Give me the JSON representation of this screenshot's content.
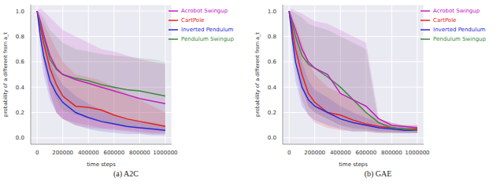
{
  "chart_data": [
    {
      "type": "line",
      "title": "(a) A2C",
      "x_label": "time steps",
      "y_label": "probability of a different from a_t",
      "x": [
        0,
        25000,
        50000,
        100000,
        150000,
        200000,
        300000,
        400000,
        500000,
        600000,
        700000,
        800000,
        900000,
        1000000
      ],
      "xlim": [
        -50000,
        1050000
      ],
      "xticks": [
        0,
        200000,
        400000,
        600000,
        800000,
        1000000
      ],
      "ylim": [
        -0.05,
        1.05
      ],
      "yticks": [
        {
          "value": 0,
          "label": "0.0"
        },
        {
          "value": 0.2,
          "label": "0.2"
        },
        {
          "value": 0.4,
          "label": "0.4"
        },
        {
          "value": 0.6,
          "label": "0.6"
        },
        {
          "value": 0.8,
          "label": "0.8"
        },
        {
          "value": 1,
          "label": "1.0"
        }
      ],
      "grid": true,
      "legend": "upper right",
      "series": [
        {
          "name": "CartPole",
          "color": "#e8221b",
          "values": [
            1.0,
            0.88,
            0.75,
            0.55,
            0.42,
            0.33,
            0.25,
            0.24,
            0.22,
            0.18,
            0.15,
            0.13,
            0.11,
            0.09
          ],
          "lower": [
            1.0,
            0.8,
            0.6,
            0.35,
            0.2,
            0.15,
            0.1,
            0.08,
            0.07,
            0.06,
            0.05,
            0.04,
            0.03,
            0.03
          ],
          "upper": [
            1.0,
            0.95,
            0.9,
            0.8,
            0.7,
            0.6,
            0.5,
            0.48,
            0.45,
            0.4,
            0.35,
            0.3,
            0.25,
            0.2
          ]
        },
        {
          "name": "Inverted Pendulum",
          "color": "#2a2ad8",
          "values": [
            1.0,
            0.8,
            0.65,
            0.45,
            0.35,
            0.28,
            0.2,
            0.16,
            0.13,
            0.11,
            0.09,
            0.08,
            0.07,
            0.06
          ],
          "lower": [
            1.0,
            0.7,
            0.5,
            0.3,
            0.2,
            0.15,
            0.1,
            0.07,
            0.05,
            0.04,
            0.03,
            0.03,
            0.02,
            0.02
          ],
          "upper": [
            1.0,
            0.9,
            0.8,
            0.6,
            0.5,
            0.42,
            0.33,
            0.27,
            0.22,
            0.18,
            0.15,
            0.13,
            0.12,
            0.1
          ]
        },
        {
          "name": "Pendulum Swingup",
          "color": "#3a8a3a",
          "values": [
            1.0,
            0.9,
            0.8,
            0.62,
            0.54,
            0.5,
            0.47,
            0.45,
            0.42,
            0.4,
            0.38,
            0.37,
            0.35,
            0.33
          ],
          "lower": [
            1.0,
            0.85,
            0.7,
            0.45,
            0.3,
            0.22,
            0.18,
            0.15,
            0.12,
            0.1,
            0.08,
            0.07,
            0.06,
            0.05
          ],
          "upper": [
            1.0,
            0.98,
            0.95,
            0.85,
            0.8,
            0.75,
            0.7,
            0.68,
            0.66,
            0.65,
            0.64,
            0.63,
            0.62,
            0.6
          ]
        },
        {
          "name": "Acrobot Swingup",
          "color": "#c020c0",
          "values": [
            1.0,
            0.92,
            0.82,
            0.65,
            0.55,
            0.5,
            0.46,
            0.43,
            0.4,
            0.37,
            0.34,
            0.31,
            0.29,
            0.27
          ],
          "lower": [
            1.0,
            0.8,
            0.6,
            0.35,
            0.2,
            0.15,
            0.12,
            0.1,
            0.08,
            0.07,
            0.06,
            0.05,
            0.04,
            0.04
          ],
          "upper": [
            1.0,
            1.02,
            1.0,
            0.95,
            0.9,
            0.85,
            0.8,
            0.75,
            0.7,
            0.68,
            0.65,
            0.62,
            0.6,
            0.58
          ]
        }
      ]
    },
    {
      "type": "line",
      "title": "(b) GAE",
      "x_label": "time steps",
      "y_label": "probability of a different from a_t",
      "x": [
        0,
        25000,
        50000,
        100000,
        150000,
        200000,
        300000,
        400000,
        500000,
        600000,
        700000,
        800000,
        900000,
        1000000
      ],
      "xlim": [
        -50000,
        1050000
      ],
      "xticks": [
        0,
        200000,
        400000,
        600000,
        800000,
        1000000
      ],
      "ylim": [
        -0.05,
        1.05
      ],
      "yticks": [
        {
          "value": 0,
          "label": "0.0"
        },
        {
          "value": 0.2,
          "label": "0.2"
        },
        {
          "value": 0.4,
          "label": "0.4"
        },
        {
          "value": 0.6,
          "label": "0.6"
        },
        {
          "value": 0.8,
          "label": "0.8"
        },
        {
          "value": 1,
          "label": "1.0"
        }
      ],
      "grid": true,
      "legend": "upper right",
      "series": [
        {
          "name": "CartPole",
          "color": "#e8221b",
          "values": [
            1.0,
            0.85,
            0.7,
            0.5,
            0.35,
            0.28,
            0.2,
            0.18,
            0.14,
            0.11,
            0.09,
            0.08,
            0.07,
            0.07
          ],
          "lower": [
            1.0,
            0.75,
            0.55,
            0.3,
            0.18,
            0.12,
            0.08,
            0.06,
            0.05,
            0.05,
            0.04,
            0.04,
            0.04,
            0.04
          ],
          "upper": [
            1.0,
            0.95,
            0.9,
            0.75,
            0.6,
            0.5,
            0.4,
            0.35,
            0.3,
            0.2,
            0.15,
            0.12,
            0.1,
            0.1
          ]
        },
        {
          "name": "Inverted Pendulum",
          "color": "#2a2ad8",
          "values": [
            1.0,
            0.78,
            0.6,
            0.4,
            0.3,
            0.25,
            0.2,
            0.15,
            0.12,
            0.1,
            0.08,
            0.07,
            0.06,
            0.06
          ],
          "lower": [
            1.0,
            0.65,
            0.45,
            0.25,
            0.18,
            0.14,
            0.1,
            0.07,
            0.05,
            0.05,
            0.04,
            0.04,
            0.04,
            0.04
          ],
          "upper": [
            1.0,
            0.9,
            0.8,
            0.6,
            0.45,
            0.38,
            0.32,
            0.25,
            0.2,
            0.16,
            0.12,
            0.1,
            0.09,
            0.08
          ]
        },
        {
          "name": "Pendulum Swingup",
          "color": "#3a8a3a",
          "values": [
            1.0,
            0.9,
            0.8,
            0.65,
            0.58,
            0.55,
            0.48,
            0.4,
            0.3,
            0.2,
            0.12,
            0.08,
            0.07,
            0.06
          ],
          "lower": [
            1.0,
            0.8,
            0.65,
            0.4,
            0.25,
            0.2,
            0.15,
            0.1,
            0.07,
            0.06,
            0.05,
            0.04,
            0.04,
            0.04
          ],
          "upper": [
            1.0,
            1.0,
            0.98,
            0.95,
            0.9,
            0.88,
            0.85,
            0.8,
            0.75,
            0.7,
            0.1,
            0.1,
            0.09,
            0.09
          ]
        },
        {
          "name": "Acrobot Swingup",
          "color": "#c020c0",
          "values": [
            1.0,
            0.92,
            0.85,
            0.7,
            0.6,
            0.55,
            0.5,
            0.35,
            0.3,
            0.25,
            0.15,
            0.1,
            0.09,
            0.08
          ],
          "lower": [
            1.0,
            0.8,
            0.65,
            0.4,
            0.25,
            0.2,
            0.15,
            0.1,
            0.08,
            0.07,
            0.05,
            0.05,
            0.04,
            0.04
          ],
          "upper": [
            1.0,
            1.02,
            1.0,
            0.98,
            0.95,
            0.92,
            0.9,
            0.85,
            0.8,
            0.75,
            0.15,
            0.12,
            0.1,
            0.1
          ]
        }
      ]
    }
  ]
}
